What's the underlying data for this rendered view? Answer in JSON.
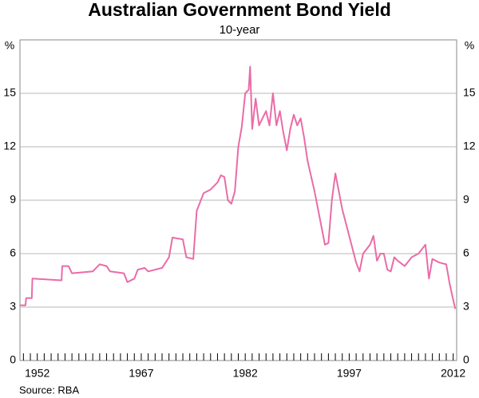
{
  "chart_data": {
    "type": "line",
    "title": "Australian Government Bond Yield",
    "subtitle": "10-year",
    "y_unit": "%",
    "source": "Source: RBA",
    "color": "#ea6ca7",
    "grid": true,
    "xlim": [
      1949.5,
      2012.5
    ],
    "ylim": [
      0,
      18
    ],
    "xticks": [
      1952,
      1967,
      1982,
      1997,
      2012
    ],
    "xminorticks": [
      1950,
      1951,
      1952,
      1953,
      1954,
      1955,
      1956,
      1957,
      1958,
      1959,
      1960,
      1961,
      1962,
      1963,
      1964,
      1965,
      1966,
      1967,
      1968,
      1969,
      1970,
      1971,
      1972,
      1973,
      1974,
      1975,
      1976,
      1977,
      1978,
      1979,
      1980,
      1981,
      1982,
      1983,
      1984,
      1985,
      1986,
      1987,
      1988,
      1989,
      1990,
      1991,
      1992,
      1993,
      1994,
      1995,
      1996,
      1997,
      1998,
      1999,
      2000,
      2001,
      2002,
      2003,
      2004,
      2005,
      2006,
      2007,
      2008,
      2009,
      2010,
      2011,
      2012
    ],
    "yticks": [
      0,
      3,
      6,
      9,
      12,
      15
    ],
    "x": [
      1949.5,
      1950.3,
      1950.4,
      1951.2,
      1951.3,
      1955.5,
      1955.6,
      1956.5,
      1957,
      1960,
      1961,
      1962,
      1962.5,
      1964.5,
      1965,
      1966,
      1966.5,
      1967.5,
      1968,
      1970,
      1971,
      1971.5,
      1973,
      1973.5,
      1974.5,
      1975,
      1976,
      1977,
      1978,
      1978.5,
      1979,
      1979.5,
      1980,
      1980.5,
      1981,
      1981.5,
      1982,
      1982.5,
      1982.7,
      1983,
      1983.5,
      1984,
      1985,
      1985.5,
      1986,
      1986.5,
      1987,
      1987.5,
      1988,
      1988.5,
      1989,
      1989.5,
      1990,
      1990.5,
      1991,
      1992,
      1993,
      1993.5,
      1994,
      1994.5,
      1995,
      1995.5,
      1996,
      1997,
      1998,
      1998.5,
      1999,
      2000,
      2000.5,
      2001,
      2001.5,
      2002,
      2002.5,
      2003,
      2003.5,
      2004,
      2005,
      2006,
      2007,
      2008,
      2008.5,
      2009,
      2010,
      2011,
      2011.5,
      2012,
      2012.3
    ],
    "values": [
      3.1,
      3.1,
      3.5,
      3.5,
      4.6,
      4.5,
      5.3,
      5.3,
      4.9,
      5.0,
      5.4,
      5.3,
      5.0,
      4.9,
      4.4,
      4.6,
      5.1,
      5.2,
      5.0,
      5.2,
      5.8,
      6.9,
      6.8,
      5.8,
      5.7,
      8.4,
      9.4,
      9.6,
      10.0,
      10.4,
      10.3,
      9.0,
      8.8,
      9.5,
      12.0,
      13.1,
      15.0,
      15.2,
      16.5,
      13.0,
      14.7,
      13.2,
      14.0,
      13.2,
      15.0,
      13.2,
      14.0,
      12.8,
      11.8,
      13.0,
      13.8,
      13.2,
      13.6,
      12.5,
      11.2,
      9.5,
      7.5,
      6.5,
      6.6,
      9.0,
      10.5,
      9.5,
      8.5,
      7.0,
      5.5,
      5.0,
      6.0,
      6.5,
      7.0,
      5.6,
      6.0,
      6.0,
      5.1,
      5.0,
      5.8,
      5.6,
      5.3,
      5.8,
      6.0,
      6.5,
      4.6,
      5.7,
      5.5,
      5.4,
      4.3,
      3.4,
      2.9
    ]
  }
}
